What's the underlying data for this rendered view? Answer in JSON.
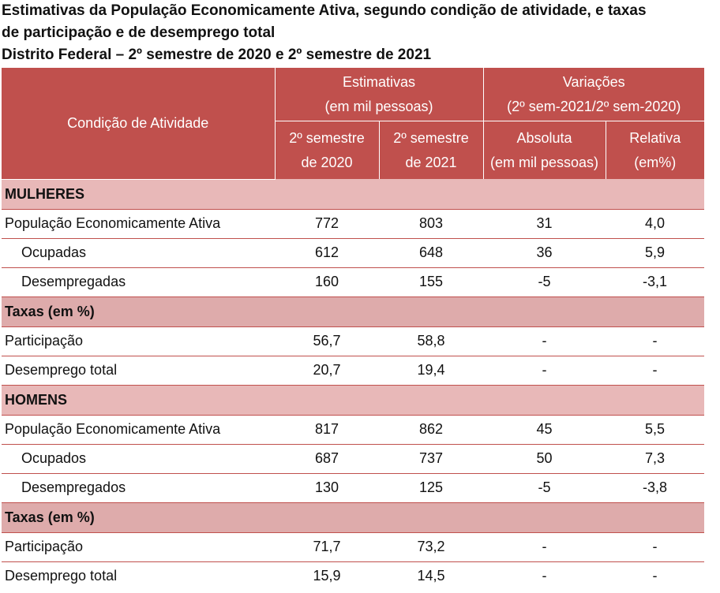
{
  "title": {
    "line1": "Estimativas da População Economicamente Ativa, segundo condição de atividade, e taxas",
    "line2": "de participação e de desemprego total",
    "line3": "Distrito Federal – 2º semestre de 2020 e 2º semestre de 2021"
  },
  "header": {
    "condicao": "Condição de Atividade",
    "estimativas_l1": "Estimativas",
    "estimativas_l2": "(em mil pessoas)",
    "variacoes_l1": "Variações",
    "variacoes_l2": "(2º sem-2021/2º sem-2020)",
    "sem2020_l1": "2º semestre",
    "sem2020_l2": "de 2020",
    "sem2021_l1": "2º semestre",
    "sem2021_l2": "de 2021",
    "absoluta_l1": "Absoluta",
    "absoluta_l2": "(em mil pessoas)",
    "relativa_l1": "Relativa",
    "relativa_l2": "(em%)"
  },
  "mulheres": {
    "label": "MULHERES",
    "rows": [
      {
        "label": "População Economicamente Ativa",
        "v2020": "772",
        "v2021": "803",
        "abs": "31",
        "rel": "4,0"
      },
      {
        "label": "Ocupadas",
        "v2020": "612",
        "v2021": "648",
        "abs": "36",
        "rel": "5,9"
      },
      {
        "label": "Desempregadas",
        "v2020": "160",
        "v2021": "155",
        "abs": "-5",
        "rel": "-3,1"
      }
    ],
    "taxas_label": "Taxas (em %)",
    "taxas": [
      {
        "label": "Participação",
        "v2020": "56,7",
        "v2021": "58,8",
        "abs": "-",
        "rel": "-"
      },
      {
        "label": "Desemprego total",
        "v2020": "20,7",
        "v2021": "19,4",
        "abs": "-",
        "rel": "-"
      }
    ]
  },
  "homens": {
    "label": "HOMENS",
    "rows": [
      {
        "label": "População Economicamente Ativa",
        "v2020": "817",
        "v2021": "862",
        "abs": "45",
        "rel": "5,5"
      },
      {
        "label": "Ocupados",
        "v2020": "687",
        "v2021": "737",
        "abs": "50",
        "rel": "7,3"
      },
      {
        "label": "Desempregados",
        "v2020": "130",
        "v2021": "125",
        "abs": "-5",
        "rel": "-3,8"
      }
    ],
    "taxas_label": "Taxas (em %)",
    "taxas": [
      {
        "label": "Participação",
        "v2020": "71,7",
        "v2021": "73,2",
        "abs": "-",
        "rel": "-"
      },
      {
        "label": "Desemprego total",
        "v2020": "15,9",
        "v2021": "14,5",
        "abs": "-",
        "rel": "-"
      }
    ]
  }
}
